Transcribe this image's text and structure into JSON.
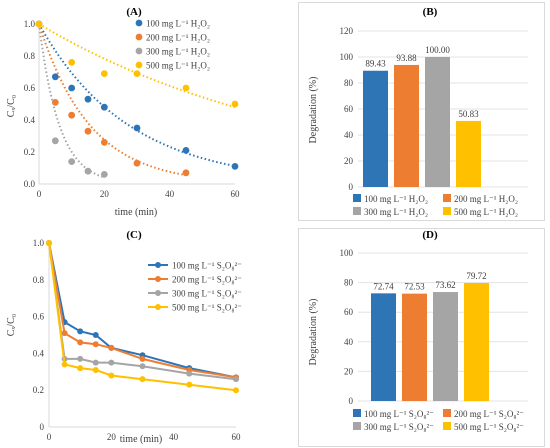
{
  "chart_data": [
    {
      "panel": "(A)",
      "type": "scatter",
      "xlabel": "time (min)",
      "ylabel": "Cₓ/C₀",
      "xlim": [
        0,
        60
      ],
      "ylim": [
        0,
        1.0
      ],
      "xticks": [
        "0",
        "20",
        "40",
        "60"
      ],
      "yticks": [
        "0.0",
        "0.2",
        "0.4",
        "0.6",
        "0.8",
        "1.0"
      ],
      "trendlines": "dotted exponential",
      "series": [
        {
          "name": "100 mg L⁻¹ H₂O₂",
          "color": "#2E75B6",
          "x": [
            0,
            5,
            10,
            15,
            20,
            30,
            45,
            60
          ],
          "y": [
            1.0,
            0.67,
            0.6,
            0.53,
            0.48,
            0.35,
            0.21,
            0.11
          ]
        },
        {
          "name": "200 mg L⁻¹ H₂O₂",
          "color": "#ED7D31",
          "x": [
            0,
            5,
            10,
            15,
            20,
            30,
            45
          ],
          "y": [
            1.0,
            0.51,
            0.43,
            0.33,
            0.26,
            0.13,
            0.07
          ]
        },
        {
          "name": "300 mg L⁻¹ H₂O₂",
          "color": "#A5A5A5",
          "x": [
            0,
            5,
            10,
            15,
            20
          ],
          "y": [
            1.0,
            0.27,
            0.14,
            0.08,
            0.06
          ]
        },
        {
          "name": "500 mg L⁻¹ H₂O₂",
          "color": "#FFC000",
          "x": [
            0,
            10,
            20,
            30,
            45,
            60
          ],
          "y": [
            1.0,
            0.76,
            0.69,
            0.69,
            0.6,
            0.5
          ]
        }
      ]
    },
    {
      "panel": "(B)",
      "type": "bar",
      "ylabel": "Degradation (%)",
      "ylim": [
        0,
        120
      ],
      "yticks": [
        "0",
        "20",
        "40",
        "60",
        "80",
        "100",
        "120"
      ],
      "categories": [
        "100 mg L⁻¹ H₂O₂",
        "200 mg L⁻¹ H₂O₂",
        "300 mg L⁻¹ H₂O₂",
        "500 mg L⁻¹ H₂O₂"
      ],
      "values": [
        89.43,
        93.88,
        100.0,
        50.83
      ],
      "labels": [
        "89.43",
        "93.88",
        "100.00",
        "50.83"
      ],
      "colors": [
        "#2E75B6",
        "#ED7D31",
        "#A5A5A5",
        "#FFC000"
      ]
    },
    {
      "panel": "(C)",
      "type": "line",
      "xlabel": "time (min)",
      "ylabel": "Cₓ/C₀",
      "xlim": [
        0,
        60
      ],
      "ylim": [
        0,
        1.0
      ],
      "xticks": [
        "0",
        "20",
        "40",
        "60"
      ],
      "yticks": [
        "0",
        "0.2",
        "0.4",
        "0.6",
        "0.8",
        "1.0"
      ],
      "series": [
        {
          "name": "100 mg L⁻¹ S₂O₈²⁻",
          "color": "#2E75B6",
          "x": [
            0,
            5,
            10,
            15,
            20,
            30,
            45,
            60
          ],
          "y": [
            1.0,
            0.57,
            0.52,
            0.5,
            0.43,
            0.39,
            0.32,
            0.27
          ]
        },
        {
          "name": "200 mg L⁻¹ S₂O₈²⁻",
          "color": "#ED7D31",
          "x": [
            0,
            5,
            10,
            15,
            20,
            30,
            45,
            60
          ],
          "y": [
            1.0,
            0.51,
            0.46,
            0.45,
            0.43,
            0.37,
            0.31,
            0.27
          ]
        },
        {
          "name": "300 mg L⁻¹ S₂O₈²⁻",
          "color": "#A5A5A5",
          "x": [
            0,
            5,
            10,
            15,
            20,
            30,
            45,
            60
          ],
          "y": [
            1.0,
            0.37,
            0.37,
            0.35,
            0.35,
            0.33,
            0.29,
            0.26
          ]
        },
        {
          "name": "500 mg L⁻¹ S₂O₈²⁻",
          "color": "#FFC000",
          "x": [
            0,
            5,
            10,
            15,
            20,
            30,
            45,
            60
          ],
          "y": [
            1.0,
            0.34,
            0.32,
            0.31,
            0.28,
            0.26,
            0.23,
            0.2
          ]
        }
      ]
    },
    {
      "panel": "(D)",
      "type": "bar",
      "ylabel": "Degradation (%)",
      "ylim": [
        0,
        100
      ],
      "yticks": [
        "0",
        "20",
        "40",
        "60",
        "80",
        "100"
      ],
      "categories": [
        "100 mg L⁻¹ S₂O₈²⁻",
        "200 mg L⁻¹ S₂O₈²⁻",
        "300 mg L⁻¹ S₂O₈²⁻",
        "500 mg L⁻¹ S₂O₈²⁻"
      ],
      "values": [
        72.74,
        72.53,
        73.62,
        79.72
      ],
      "labels": [
        "72.74",
        "72.53",
        "73.62",
        "79.72"
      ],
      "colors": [
        "#2E75B6",
        "#ED7D31",
        "#A5A5A5",
        "#FFC000"
      ]
    }
  ]
}
